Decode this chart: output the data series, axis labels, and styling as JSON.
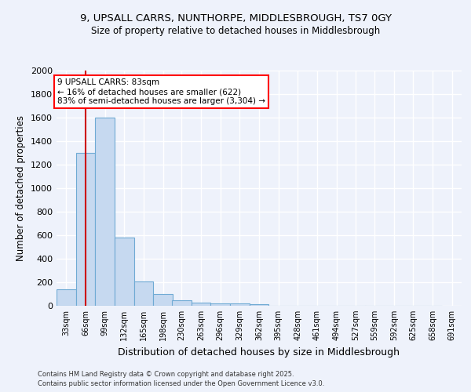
{
  "title_line1": "9, UPSALL CARRS, NUNTHORPE, MIDDLESBROUGH, TS7 0GY",
  "title_line2": "Size of property relative to detached houses in Middlesbrough",
  "xlabel": "Distribution of detached houses by size in Middlesbrough",
  "ylabel": "Number of detached properties",
  "bins_left": [
    33,
    66,
    99,
    132,
    165,
    198,
    230,
    263,
    296,
    329,
    362,
    395,
    428,
    461,
    494,
    527,
    559,
    592,
    625,
    658
  ],
  "bin_labels": [
    "33sqm",
    "66sqm",
    "99sqm",
    "132sqm",
    "165sqm",
    "198sqm",
    "230sqm",
    "263sqm",
    "296sqm",
    "329sqm",
    "362sqm",
    "395sqm",
    "428sqm",
    "461sqm",
    "494sqm",
    "527sqm",
    "559sqm",
    "592sqm",
    "625sqm",
    "658sqm",
    "691sqm"
  ],
  "counts": [
    140,
    1300,
    1600,
    580,
    210,
    100,
    50,
    25,
    20,
    20,
    15,
    0,
    0,
    0,
    0,
    0,
    0,
    0,
    0,
    0
  ],
  "bar_color": "#c6d9f0",
  "bar_edge_color": "#6faad4",
  "vline_x": 83,
  "vline_color": "#cc0000",
  "annotation_title": "9 UPSALL CARRS: 83sqm",
  "annotation_line1": "← 16% of detached houses are smaller (622)",
  "annotation_line2": "83% of semi-detached houses are larger (3,304) →",
  "annotation_box_facecolor": "white",
  "annotation_box_edgecolor": "red",
  "ylim": [
    0,
    2000
  ],
  "yticks": [
    0,
    200,
    400,
    600,
    800,
    1000,
    1200,
    1400,
    1600,
    1800,
    2000
  ],
  "footnote_line1": "Contains HM Land Registry data © Crown copyright and database right 2025.",
  "footnote_line2": "Contains public sector information licensed under the Open Government Licence v3.0.",
  "background_color": "#eef2fb",
  "grid_color": "#ffffff",
  "bin_width": 33
}
